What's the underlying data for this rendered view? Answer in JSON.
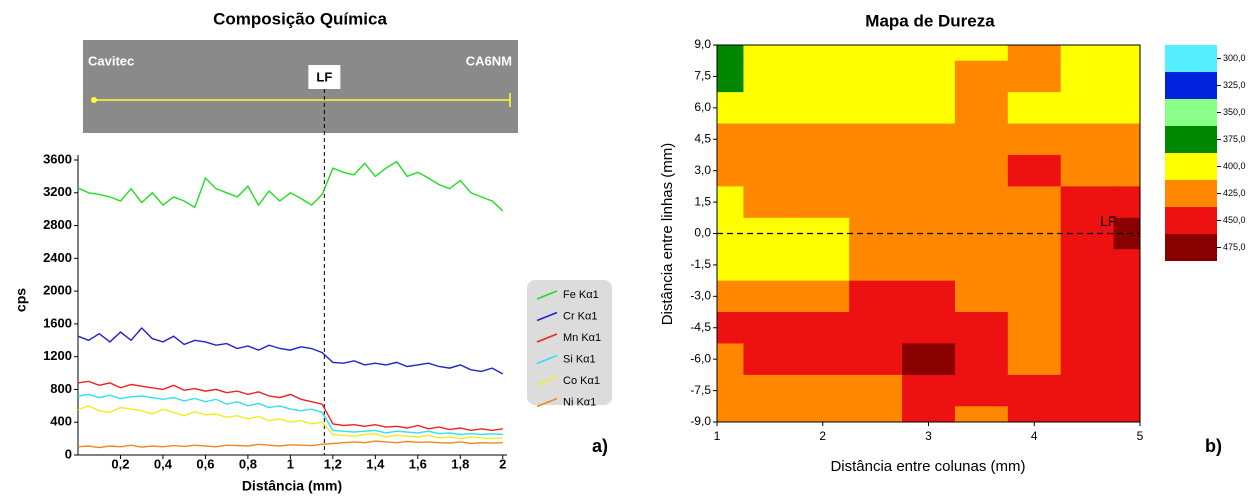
{
  "chart_data": [
    {
      "type": "line",
      "title": "Composição Química",
      "xlabel": "Distância (mm)",
      "ylabel": "cps",
      "panel_label": "a)",
      "image_labels": {
        "left": "Cavitec",
        "right": "CA6NM",
        "center": "LF"
      },
      "lf_x": 1.16,
      "xlim": [
        0,
        2.02
      ],
      "ylim": [
        0,
        3600
      ],
      "xticks": [
        {
          "value": 0.2,
          "label": "0,2"
        },
        {
          "value": 0.4,
          "label": "0,4"
        },
        {
          "value": 0.6,
          "label": "0,6"
        },
        {
          "value": 0.8,
          "label": "0,8"
        },
        1,
        {
          "value": 1.2,
          "label": "1,2"
        },
        {
          "value": 1.4,
          "label": "1,4"
        },
        {
          "value": 1.6,
          "label": "1,6"
        },
        {
          "value": 1.8,
          "label": "1,8"
        },
        2
      ],
      "yticks": [
        0,
        400,
        800,
        1200,
        1600,
        2000,
        2400,
        2800,
        3200,
        3600
      ],
      "x": [
        0,
        0.05,
        0.1,
        0.15,
        0.2,
        0.25,
        0.3,
        0.35,
        0.4,
        0.45,
        0.5,
        0.55,
        0.6,
        0.65,
        0.7,
        0.75,
        0.8,
        0.85,
        0.9,
        0.95,
        1,
        1.05,
        1.1,
        1.15,
        1.2,
        1.25,
        1.3,
        1.35,
        1.4,
        1.45,
        1.5,
        1.55,
        1.6,
        1.65,
        1.7,
        1.75,
        1.8,
        1.85,
        1.9,
        1.95,
        2
      ],
      "series": [
        {
          "name": "Fe Kα1",
          "color": "#22dd22",
          "values": [
            3260,
            3200,
            3180,
            3150,
            3100,
            3250,
            3080,
            3200,
            3050,
            3150,
            3100,
            3020,
            3380,
            3250,
            3200,
            3150,
            3280,
            3050,
            3220,
            3100,
            3200,
            3130,
            3050,
            3180,
            3500,
            3450,
            3420,
            3560,
            3400,
            3500,
            3580,
            3400,
            3450,
            3380,
            3300,
            3250,
            3350,
            3200,
            3150,
            3100,
            2980
          ]
        },
        {
          "name": "Cr Kα1",
          "color": "#2222cc",
          "values": [
            1450,
            1400,
            1480,
            1380,
            1500,
            1400,
            1550,
            1420,
            1380,
            1450,
            1350,
            1400,
            1380,
            1340,
            1360,
            1300,
            1330,
            1280,
            1340,
            1300,
            1280,
            1320,
            1300,
            1250,
            1130,
            1120,
            1150,
            1100,
            1120,
            1100,
            1130,
            1080,
            1100,
            1120,
            1080,
            1060,
            1100,
            1040,
            1020,
            1060,
            990
          ]
        },
        {
          "name": "Mn Kα1",
          "color": "#ee2222",
          "values": [
            880,
            900,
            850,
            880,
            820,
            860,
            840,
            820,
            800,
            850,
            790,
            810,
            780,
            800,
            760,
            780,
            740,
            770,
            720,
            700,
            740,
            680,
            650,
            620,
            380,
            360,
            370,
            350,
            370,
            340,
            350,
            330,
            360,
            320,
            340,
            310,
            330,
            300,
            320,
            300,
            320
          ]
        },
        {
          "name": "Si Kα1",
          "color": "#33e0ee",
          "values": [
            720,
            740,
            700,
            730,
            690,
            710,
            720,
            700,
            680,
            700,
            660,
            690,
            650,
            680,
            620,
            650,
            600,
            630,
            580,
            600,
            560,
            540,
            560,
            520,
            300,
            290,
            280,
            290,
            300,
            270,
            290,
            280,
            270,
            290,
            260,
            270,
            250,
            260,
            250,
            260,
            250
          ]
        },
        {
          "name": "Co Kα1",
          "color": "#eeee22",
          "values": [
            550,
            600,
            540,
            520,
            580,
            560,
            540,
            500,
            560,
            520,
            480,
            530,
            490,
            500,
            460,
            480,
            440,
            470,
            420,
            440,
            400,
            420,
            380,
            400,
            250,
            240,
            230,
            250,
            260,
            220,
            240,
            230,
            220,
            240,
            210,
            220,
            200,
            220,
            210,
            200,
            210
          ]
        },
        {
          "name": "Ni Kα1",
          "color": "#ee8822",
          "values": [
            100,
            110,
            90,
            110,
            100,
            120,
            95,
            110,
            100,
            115,
            105,
            120,
            110,
            100,
            120,
            115,
            110,
            130,
            120,
            110,
            125,
            120,
            115,
            130,
            140,
            150,
            160,
            150,
            170,
            160,
            150,
            165,
            155,
            160,
            150,
            145,
            160,
            140,
            150,
            145,
            150
          ]
        }
      ]
    },
    {
      "type": "contour",
      "title": "Mapa de Dureza",
      "xlabel": "Distância entre colunas (mm)",
      "ylabel": "Distância entre linhas (mm)",
      "panel_label": "b)",
      "lf_y": 0,
      "lf_label": "LF",
      "xlim": [
        1,
        5
      ],
      "ylim": [
        -9,
        9
      ],
      "xticks": [
        1,
        2,
        3,
        4,
        5
      ],
      "yticks": [
        {
          "value": 9,
          "label": "9,0"
        },
        {
          "value": 7.5,
          "label": "7,5"
        },
        {
          "value": 6,
          "label": "6,0"
        },
        {
          "value": 4.5,
          "label": "4,5"
        },
        {
          "value": 3,
          "label": "3,0"
        },
        {
          "value": 1.5,
          "label": "1,5"
        },
        {
          "value": 0,
          "label": "0,0"
        },
        {
          "value": -1.5,
          "label": "-1,5"
        },
        {
          "value": -3,
          "label": "-3,0"
        },
        {
          "value": -4.5,
          "label": "-4,5"
        },
        {
          "value": -6,
          "label": "-6,0"
        },
        {
          "value": -7.5,
          "label": "-7,5"
        },
        {
          "value": -9,
          "label": "-9,0"
        }
      ],
      "x": [
        1,
        1.5,
        2,
        2.5,
        3,
        3.5,
        4,
        4.5,
        5
      ],
      "y": [
        9,
        7.5,
        6,
        4.5,
        3,
        1.5,
        0,
        -1.5,
        -3,
        -4.5,
        -6,
        -7.5,
        -9
      ],
      "z": [
        [
          360,
          380,
          390,
          390,
          395,
          395,
          410,
          395,
          390
        ],
        [
          365,
          385,
          390,
          390,
          395,
          400,
          410,
          395,
          390
        ],
        [
          390,
          395,
          395,
          395,
          398,
          405,
          398,
          395,
          395
        ],
        [
          405,
          410,
          410,
          410,
          405,
          410,
          410,
          410,
          410
        ],
        [
          410,
          412,
          412,
          412,
          410,
          415,
          430,
          415,
          420
        ],
        [
          395,
          405,
          412,
          415,
          415,
          418,
          420,
          428,
          432
        ],
        [
          385,
          390,
          395,
          410,
          415,
          418,
          420,
          430,
          455
        ],
        [
          390,
          392,
          398,
          412,
          415,
          418,
          420,
          432,
          445
        ],
        [
          405,
          410,
          420,
          425,
          428,
          420,
          415,
          430,
          435
        ],
        [
          430,
          432,
          435,
          440,
          445,
          432,
          415,
          430,
          435
        ],
        [
          410,
          425,
          438,
          440,
          455,
          435,
          420,
          432,
          435
        ],
        [
          400,
          405,
          410,
          420,
          430,
          425,
          425,
          430,
          435
        ],
        [
          405,
          410,
          415,
          420,
          430,
          420,
          425,
          430,
          435
        ]
      ],
      "colorbar": {
        "colors": [
          "#55eeff",
          "#0022dd",
          "#88ff88",
          "#008800",
          "#ffff00",
          "#ff8800",
          "#ee1111",
          "#880000"
        ],
        "levels": [
          {
            "value": 300,
            "label": "300,0"
          },
          {
            "value": 325,
            "label": "325,0"
          },
          {
            "value": 350,
            "label": "350,0"
          },
          {
            "value": 375,
            "label": "375,0"
          },
          {
            "value": 400,
            "label": "400,0"
          },
          {
            "value": 425,
            "label": "425,0"
          },
          {
            "value": 450,
            "label": "450,0"
          },
          {
            "value": 475,
            "label": "475,0"
          }
        ]
      }
    }
  ]
}
